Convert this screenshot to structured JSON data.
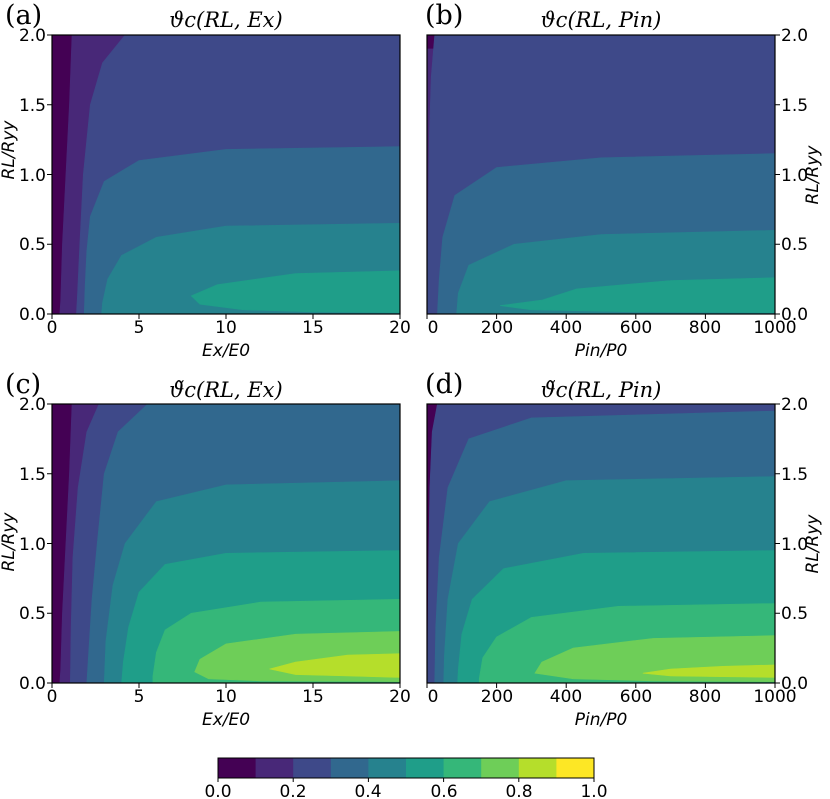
{
  "colorbar": {
    "levels": [
      0.0,
      0.1,
      0.2,
      0.3,
      0.4,
      0.5,
      0.6,
      0.7,
      0.8,
      0.9,
      1.0
    ],
    "colors": [
      "#440154",
      "#482878",
      "#3e4989",
      "#31688e",
      "#26828e",
      "#1f9e89",
      "#35b779",
      "#6ece58",
      "#b5de2b",
      "#fde725"
    ],
    "ticks": [
      "0.0",
      "0.2",
      "0.4",
      "0.6",
      "0.8",
      "1.0"
    ]
  },
  "chart_data": [
    {
      "type": "heatmap",
      "panel_label": "(a)",
      "title": "ϑc(RL, Ex)",
      "xlabel": "Ex/E0",
      "ylabel": "RL/Ryy",
      "xlim": [
        0,
        20
      ],
      "ylim": [
        0,
        2.0
      ],
      "xticks": [
        "0",
        "5",
        "10",
        "15",
        "20"
      ],
      "yticks": [
        "0.0",
        "0.5",
        "1.0",
        "1.5",
        "2.0"
      ],
      "contours": [
        {
          "level": 0.1,
          "x": [
            [
              1.15,
              2.0
            ],
            [
              1.0,
              1.5
            ],
            [
              0.8,
              1.0
            ],
            [
              0.6,
              0.5
            ],
            [
              0.5,
              0.1
            ],
            [
              0.45,
              0.0
            ]
          ]
        },
        {
          "level": 0.2,
          "x": [
            [
              4.2,
              2.0
            ],
            [
              2.9,
              1.8
            ],
            [
              2.2,
              1.5
            ],
            [
              1.8,
              1.0
            ],
            [
              1.6,
              0.5
            ],
            [
              1.45,
              0.1
            ],
            [
              1.4,
              0.0
            ]
          ]
        },
        {
          "level": 0.3,
          "x": [
            [
              20,
              1.2
            ],
            [
              10,
              1.18
            ],
            [
              5,
              1.1
            ],
            [
              3,
              0.95
            ],
            [
              2.2,
              0.7
            ],
            [
              2.0,
              0.45
            ],
            [
              1.9,
              0.2
            ],
            [
              1.85,
              0.0
            ]
          ]
        },
        {
          "level": 0.4,
          "x": [
            [
              20,
              0.65
            ],
            [
              10,
              0.63
            ],
            [
              6,
              0.55
            ],
            [
              4,
              0.42
            ],
            [
              3.2,
              0.25
            ],
            [
              2.9,
              0.08
            ],
            [
              2.85,
              0.0
            ]
          ]
        },
        {
          "level": 0.5,
          "x": [
            [
              20,
              0.31
            ],
            [
              14,
              0.29
            ],
            [
              9.5,
              0.21
            ],
            [
              8,
              0.13
            ],
            [
              8.5,
              0.07
            ],
            [
              11,
              0.03
            ],
            [
              15,
              0.015
            ],
            [
              20,
              0.01
            ]
          ]
        }
      ]
    },
    {
      "type": "heatmap",
      "panel_label": "(b)",
      "title": "ϑc(RL, Pin)",
      "xlabel": "Pin/P0",
      "ylabel": "RL/Ryy",
      "xlim": [
        0,
        1000
      ],
      "ylim": [
        0,
        2.0
      ],
      "xticks": [
        "0",
        "200",
        "400",
        "600",
        "800",
        "1000"
      ],
      "yticks": [
        "0.0",
        "0.5",
        "1.0",
        "1.5",
        "2.0"
      ],
      "contours": [
        {
          "level": 0.1,
          "x": [
            [
              0,
              1.9
            ],
            [
              0,
              0
            ]
          ]
        },
        {
          "level": 0.2,
          "x": [
            [
              22,
              2.0
            ],
            [
              12,
              1.7
            ],
            [
              7,
              1.3
            ],
            [
              4,
              0.8
            ],
            [
              2,
              0.3
            ],
            [
              1,
              0.0
            ]
          ]
        },
        {
          "level": 0.3,
          "x": [
            [
              1000,
              1.15
            ],
            [
              500,
              1.12
            ],
            [
              200,
              1.05
            ],
            [
              80,
              0.85
            ],
            [
              45,
              0.55
            ],
            [
              35,
              0.25
            ],
            [
              30,
              0.0
            ]
          ]
        },
        {
          "level": 0.4,
          "x": [
            [
              1000,
              0.6
            ],
            [
              500,
              0.57
            ],
            [
              250,
              0.5
            ],
            [
              120,
              0.35
            ],
            [
              90,
              0.15
            ],
            [
              85,
              0.0
            ]
          ]
        },
        {
          "level": 0.5,
          "x": [
            [
              1000,
              0.26
            ],
            [
              700,
              0.24
            ],
            [
              430,
              0.18
            ],
            [
              330,
              0.1
            ],
            [
              210,
              0.06
            ],
            [
              300,
              0.03
            ],
            [
              600,
              0.015
            ],
            [
              1000,
              0.01
            ]
          ]
        }
      ]
    },
    {
      "type": "heatmap",
      "panel_label": "(c)",
      "title": "ϑ̃c(RL, Ex)",
      "xlabel": "Ex/E0",
      "ylabel": "RL/Ryy",
      "xlim": [
        0,
        20
      ],
      "ylim": [
        0,
        2.0
      ],
      "xticks": [
        "0",
        "5",
        "10",
        "15",
        "20"
      ],
      "yticks": [
        "0.0",
        "0.5",
        "1.0",
        "1.5",
        "2.0"
      ],
      "contours": [
        {
          "level": 0.1,
          "x": [
            [
              1.15,
              2.0
            ],
            [
              1.0,
              1.5
            ],
            [
              0.8,
              1.0
            ],
            [
              0.6,
              0.5
            ],
            [
              0.5,
              0.1
            ],
            [
              0.45,
              0.0
            ]
          ]
        },
        {
          "level": 0.2,
          "x": [
            [
              2.7,
              2.0
            ],
            [
              2.0,
              1.8
            ],
            [
              1.5,
              1.4
            ],
            [
              1.2,
              0.9
            ],
            [
              1.1,
              0.4
            ],
            [
              1.05,
              0.0
            ]
          ]
        },
        {
          "level": 0.3,
          "x": [
            [
              5.5,
              2.0
            ],
            [
              3.8,
              1.8
            ],
            [
              3.0,
              1.5
            ],
            [
              2.6,
              1.0
            ],
            [
              2.3,
              0.6
            ],
            [
              2.1,
              0.2
            ],
            [
              2.0,
              0.0
            ]
          ]
        },
        {
          "level": 0.4,
          "x": [
            [
              20,
              1.45
            ],
            [
              10,
              1.42
            ],
            [
              6,
              1.3
            ],
            [
              4.2,
              1.0
            ],
            [
              3.5,
              0.7
            ],
            [
              3.1,
              0.3
            ],
            [
              3.0,
              0.0
            ]
          ]
        },
        {
          "level": 0.5,
          "x": [
            [
              20,
              0.95
            ],
            [
              10,
              0.93
            ],
            [
              6.5,
              0.85
            ],
            [
              5,
              0.65
            ],
            [
              4.4,
              0.4
            ],
            [
              4.1,
              0.15
            ],
            [
              4.0,
              0.0
            ]
          ]
        },
        {
          "level": 0.6,
          "x": [
            [
              20,
              0.6
            ],
            [
              12,
              0.58
            ],
            [
              8,
              0.5
            ],
            [
              6.5,
              0.38
            ],
            [
              6,
              0.22
            ],
            [
              5.8,
              0.05
            ],
            [
              5.8,
              0.0
            ]
          ]
        },
        {
          "level": 0.7,
          "x": [
            [
              20,
              0.37
            ],
            [
              14,
              0.35
            ],
            [
              10,
              0.28
            ],
            [
              8.5,
              0.17
            ],
            [
              8.2,
              0.08
            ],
            [
              9,
              0.03
            ],
            [
              12,
              0.015
            ],
            [
              20,
              0.01
            ]
          ]
        },
        {
          "level": 0.8,
          "x": [
            [
              20,
              0.21
            ],
            [
              17,
              0.2
            ],
            [
              14,
              0.15
            ],
            [
              12.5,
              0.1
            ],
            [
              14,
              0.06
            ],
            [
              17,
              0.05
            ],
            [
              20,
              0.04
            ]
          ]
        }
      ]
    },
    {
      "type": "heatmap",
      "panel_label": "(d)",
      "title": "ϑ̃c(RL, Pin)",
      "xlabel": "Pin/P0",
      "ylabel": "RL/Ryy",
      "xlim": [
        0,
        1000
      ],
      "ylim": [
        0,
        2.0
      ],
      "xticks": [
        "0",
        "200",
        "400",
        "600",
        "800",
        "1000"
      ],
      "yticks": [
        "0.0",
        "0.5",
        "1.0",
        "1.5",
        "2.0"
      ],
      "contours": [
        {
          "level": 0.2,
          "x": [
            [
              30,
              2.0
            ],
            [
              15,
              1.8
            ],
            [
              8,
              1.4
            ],
            [
              5,
              0.9
            ],
            [
              3,
              0.4
            ],
            [
              2,
              0.0
            ]
          ]
        },
        {
          "level": 0.3,
          "x": [
            [
              1000,
              1.95
            ],
            [
              300,
              1.9
            ],
            [
              120,
              1.75
            ],
            [
              60,
              1.4
            ],
            [
              35,
              0.9
            ],
            [
              25,
              0.4
            ],
            [
              22,
              0.0
            ]
          ]
        },
        {
          "level": 0.4,
          "x": [
            [
              1000,
              1.48
            ],
            [
              400,
              1.45
            ],
            [
              180,
              1.3
            ],
            [
              90,
              1.0
            ],
            [
              60,
              0.6
            ],
            [
              50,
              0.2
            ],
            [
              48,
              0.0
            ]
          ]
        },
        {
          "level": 0.5,
          "x": [
            [
              1000,
              0.95
            ],
            [
              450,
              0.93
            ],
            [
              220,
              0.82
            ],
            [
              130,
              0.6
            ],
            [
              100,
              0.35
            ],
            [
              90,
              0.1
            ],
            [
              88,
              0.0
            ]
          ]
        },
        {
          "level": 0.6,
          "x": [
            [
              1000,
              0.57
            ],
            [
              550,
              0.55
            ],
            [
              300,
              0.47
            ],
            [
              200,
              0.33
            ],
            [
              160,
              0.18
            ],
            [
              150,
              0.03
            ],
            [
              150,
              0.0
            ]
          ]
        },
        {
          "level": 0.7,
          "x": [
            [
              1000,
              0.34
            ],
            [
              650,
              0.32
            ],
            [
              420,
              0.25
            ],
            [
              330,
              0.15
            ],
            [
              310,
              0.07
            ],
            [
              420,
              0.03
            ],
            [
              650,
              0.015
            ],
            [
              1000,
              0.01
            ]
          ]
        },
        {
          "level": 0.8,
          "x": [
            [
              1000,
              0.13
            ],
            [
              850,
              0.12
            ],
            [
              700,
              0.1
            ],
            [
              620,
              0.07
            ],
            [
              700,
              0.05
            ],
            [
              850,
              0.045
            ],
            [
              1000,
              0.04
            ]
          ]
        }
      ]
    }
  ]
}
